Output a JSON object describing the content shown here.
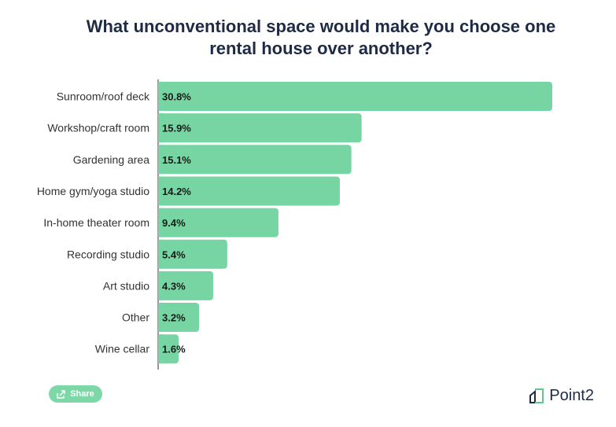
{
  "title_line1": "What unconventional space would make you choose one",
  "title_line2": "rental house over another?",
  "share_label": "Share",
  "brand_name": "Point2",
  "colors": {
    "bar": "#77d5a3",
    "axis": "#333333",
    "title": "#1f2a44",
    "label": "#333333",
    "value_label": "#1a1a1a",
    "brand_accent": "#5cc98f"
  },
  "chart_data": {
    "type": "bar",
    "orientation": "horizontal",
    "categories": [
      "Sunroom/roof deck",
      "Workshop/craft room",
      "Gardening area",
      "Home gym/yoga studio",
      "In-home theater room",
      "Recording studio",
      "Art studio",
      "Other",
      "Wine cellar"
    ],
    "values": [
      30.8,
      15.9,
      15.1,
      14.2,
      9.4,
      5.4,
      4.3,
      3.2,
      1.6
    ],
    "value_labels": [
      "30.8%",
      "15.9%",
      "15.1%",
      "14.2%",
      "9.4%",
      "5.4%",
      "4.3%",
      "3.2%",
      "1.6%"
    ],
    "title": "What unconventional space would make you choose one rental house over another?",
    "xlabel": "",
    "ylabel": "",
    "xlim": [
      0,
      30.8
    ],
    "grid": false,
    "legend": "none"
  }
}
